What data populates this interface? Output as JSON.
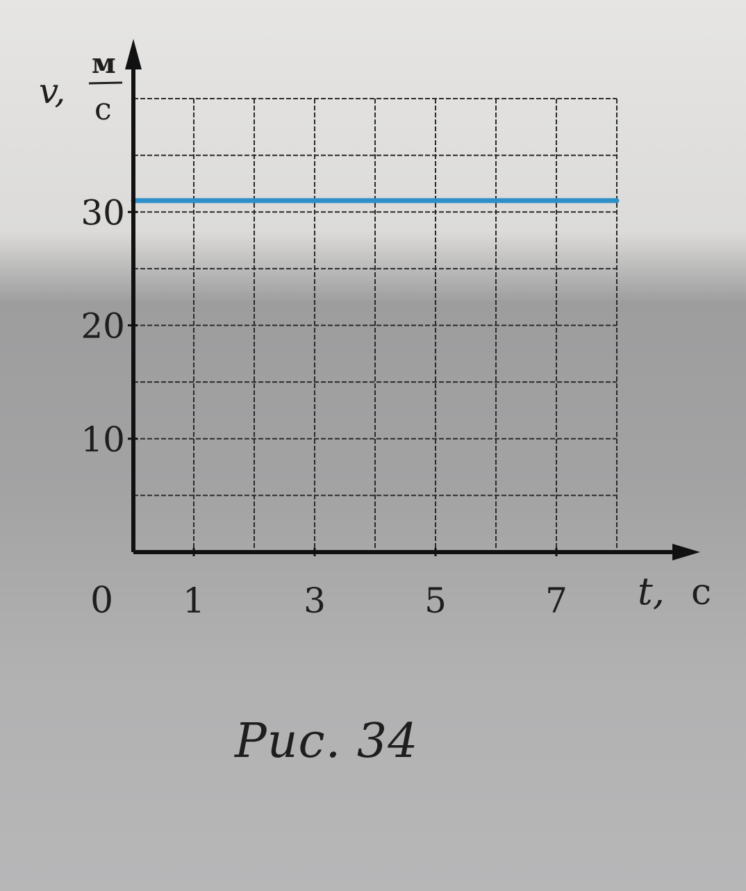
{
  "chart_data": {
    "type": "line",
    "x_axis": {
      "symbol": "t,",
      "unit": "с",
      "range": [
        0,
        8
      ],
      "ticks": [
        1,
        3,
        5,
        7
      ]
    },
    "y_axis": {
      "symbol": "v,",
      "unit_num": "м",
      "unit_den": "с",
      "range": [
        0,
        40
      ],
      "ticks": [
        10,
        20,
        30
      ]
    },
    "origin_label": "0",
    "grid": true,
    "grid_step": {
      "x": 1,
      "y": 5
    },
    "series": [
      {
        "color": "#2f8fc8",
        "x": [
          0,
          8
        ],
        "y": [
          31,
          31
        ]
      }
    ]
  },
  "caption": "Рис. 34"
}
